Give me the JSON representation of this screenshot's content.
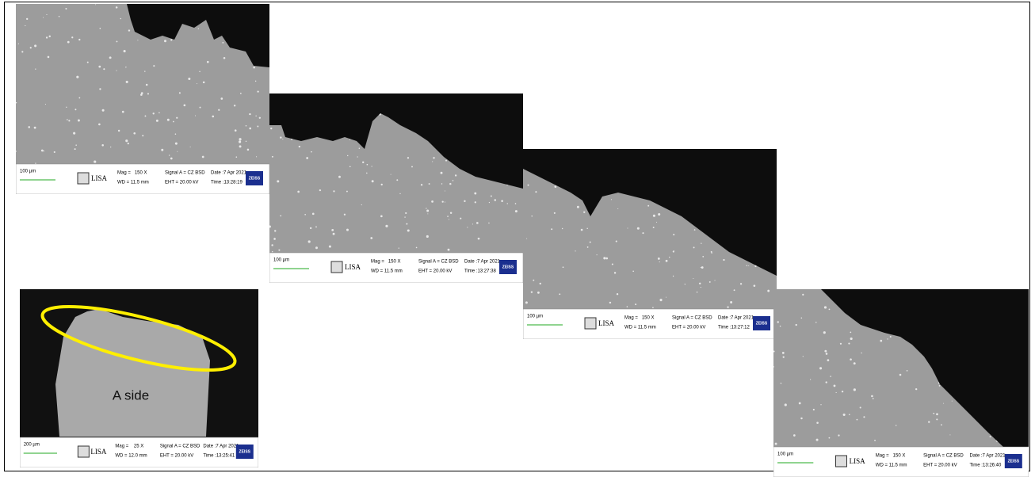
{
  "panels": [
    {
      "scale_bar": "100 µm",
      "logo": "LISA",
      "mag": "Mag =   150 X",
      "wd": "WD = 11.5 mm",
      "signal": "Signal A = CZ BSD",
      "eht": "EHT = 20.00 kV",
      "date": "Date :7 Apr 2021",
      "time": "Time :13:28:19",
      "brand": "ZEISS"
    },
    {
      "scale_bar": "100 µm",
      "logo": "LISA",
      "mag": "Mag =   150 X",
      "wd": "WD = 11.5 mm",
      "signal": "Signal A = CZ BSD",
      "eht": "EHT = 20.00 kV",
      "date": "Date :7 Apr 2021",
      "time": "Time :13:27:38",
      "brand": "ZEISS"
    },
    {
      "scale_bar": "100 µm",
      "logo": "LISA",
      "mag": "Mag =   150 X",
      "wd": "WD = 11.5 mm",
      "signal": "Signal A = CZ BSD",
      "eht": "EHT = 20.00 kV",
      "date": "Date :7 Apr 2021",
      "time": "Time :13:27:12",
      "brand": "ZEISS"
    },
    {
      "scale_bar": "200 µm",
      "logo": "LISA",
      "mag": "Mag =    25 X",
      "wd": "WD = 12.0 mm",
      "signal": "Signal A = CZ BSD",
      "eht": "EHT = 20.00 kV",
      "date": "Date :7 Apr 2021",
      "time": "Time :13:25:41",
      "brand": "ZEISS"
    },
    {
      "scale_bar": "100 µm",
      "logo": "LISA",
      "mag": "Mag =   150 X",
      "wd": "WD = 11.5 mm",
      "signal": "Signal A = CZ BSD",
      "eht": "EHT = 20.00 kV",
      "date": "Date :7 Apr 2021",
      "time": "Time :13:26:40",
      "brand": "ZEISS"
    }
  ],
  "annotation": "A side"
}
